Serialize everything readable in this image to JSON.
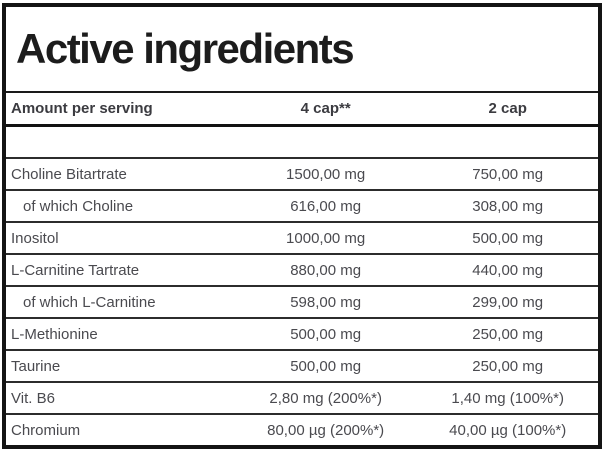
{
  "title": "Active ingredients",
  "table": {
    "columns": {
      "name": "Amount per serving",
      "serving4": "4 cap**",
      "serving2": "2 cap"
    },
    "rows": [
      {
        "name": "",
        "per4": "",
        "per2": ""
      },
      {
        "name": "Choline Bitartrate",
        "per4": "1500,00 mg",
        "per2": "750,00 mg"
      },
      {
        "name": "of which Choline",
        "per4": "616,00 mg",
        "per2": "308,00 mg"
      },
      {
        "name": "Inositol",
        "per4": "1000,00 mg",
        "per2": "500,00 mg"
      },
      {
        "name": "L-Carnitine Tartrate",
        "per4": "880,00 mg",
        "per2": "440,00 mg"
      },
      {
        "name": "of which L-Carnitine",
        "per4": "598,00 mg",
        "per2": "299,00 mg"
      },
      {
        "name": "L-Methionine",
        "per4": "500,00 mg",
        "per2": "250,00 mg"
      },
      {
        "name": "Taurine",
        "per4": "500,00 mg",
        "per2": "250,00 mg"
      },
      {
        "name": "Vit. B6",
        "per4": "2,80 mg (200%*)",
        "per2": "1,40 mg (100%*)"
      },
      {
        "name": "Chromium",
        "per4": "80,00 µg (200%*)",
        "per2": "40,00 µg (100%*)"
      }
    ]
  },
  "colors": {
    "background": "#ffffff",
    "outer_border": "#141414",
    "title_text": "#1c1c1c",
    "header_text": "#3b3b40",
    "body_text": "#4a4a4f",
    "row_divider": "#2c2c2c"
  }
}
